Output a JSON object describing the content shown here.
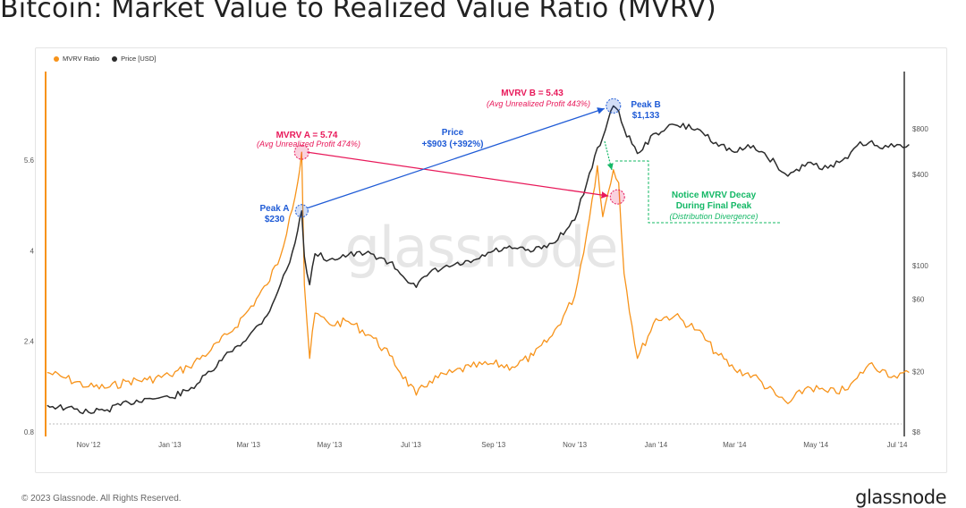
{
  "page": {
    "title": "Bitcoin: Market Value to Realized Value Ratio (MVRV)",
    "copyright": "© 2023 Glassnode. All Rights Reserved.",
    "brand": "glassnode",
    "watermark": "glassnode"
  },
  "colors": {
    "mvrv": "#f7931a",
    "price": "#2b2b2b",
    "pink": "#e8195a",
    "blue": "#1f5bd6",
    "green": "#14b866"
  },
  "chart_data": {
    "type": "line",
    "title": "Bitcoin: Market Value to Realized Value Ratio (MVRV)",
    "legend": [
      "MVRV Ratio",
      "Price [USD]"
    ],
    "legend_position": "top-left",
    "x_ticks": [
      "Nov '12",
      "Jan '13",
      "Mar '13",
      "May '13",
      "Jul '13",
      "Sep '13",
      "Nov '13",
      "Jan '14",
      "Mar '14",
      "May '14",
      "Jul '14"
    ],
    "y_left": {
      "label": "MVRV Ratio",
      "ticks": [
        "0.8",
        "2.4",
        "4",
        "5.6"
      ],
      "range": [
        0.8,
        6.4
      ]
    },
    "y_right": {
      "label": "Price [USD]",
      "scale": "log",
      "ticks": [
        "$8",
        "$20",
        "$60",
        "$100",
        "$400",
        "$800"
      ],
      "range": [
        8,
        1500
      ]
    },
    "x_range": [
      "2012-10-01",
      "2014-07-10"
    ],
    "series": [
      {
        "name": "MVRV Ratio",
        "points": [
          [
            "2012-10-01",
            1.85
          ],
          [
            "2012-10-15",
            1.75
          ],
          [
            "2012-11-01",
            1.6
          ],
          [
            "2012-11-15",
            1.58
          ],
          [
            "2012-12-01",
            1.7
          ],
          [
            "2012-12-15",
            1.72
          ],
          [
            "2013-01-01",
            1.8
          ],
          [
            "2013-01-15",
            1.95
          ],
          [
            "2013-02-01",
            2.25
          ],
          [
            "2013-02-15",
            2.55
          ],
          [
            "2013-03-01",
            2.95
          ],
          [
            "2013-03-15",
            3.4
          ],
          [
            "2013-03-25",
            3.9
          ],
          [
            "2013-04-01",
            4.6
          ],
          [
            "2013-04-07",
            5.2
          ],
          [
            "2013-04-10",
            5.74
          ],
          [
            "2013-04-12",
            3.4
          ],
          [
            "2013-04-16",
            2.1
          ],
          [
            "2013-04-20",
            2.9
          ],
          [
            "2013-05-01",
            2.7
          ],
          [
            "2013-05-15",
            2.75
          ],
          [
            "2013-06-01",
            2.5
          ],
          [
            "2013-06-15",
            2.15
          ],
          [
            "2013-07-05",
            1.45
          ],
          [
            "2013-07-15",
            1.7
          ],
          [
            "2013-08-01",
            1.85
          ],
          [
            "2013-08-15",
            1.95
          ],
          [
            "2013-09-01",
            2.0
          ],
          [
            "2013-09-15",
            1.95
          ],
          [
            "2013-10-01",
            2.15
          ],
          [
            "2013-10-15",
            2.5
          ],
          [
            "2013-11-01",
            3.2
          ],
          [
            "2013-11-10",
            4.3
          ],
          [
            "2013-11-18",
            5.5
          ],
          [
            "2013-11-22",
            4.6
          ],
          [
            "2013-11-30",
            5.43
          ],
          [
            "2013-12-04",
            5.2
          ],
          [
            "2013-12-08",
            3.6
          ],
          [
            "2013-12-18",
            2.1
          ],
          [
            "2014-01-01",
            2.8
          ],
          [
            "2014-01-15",
            2.85
          ],
          [
            "2014-02-01",
            2.6
          ],
          [
            "2014-02-15",
            2.2
          ],
          [
            "2014-03-01",
            1.9
          ],
          [
            "2014-03-15",
            1.8
          ],
          [
            "2014-04-01",
            1.45
          ],
          [
            "2014-04-10",
            1.3
          ],
          [
            "2014-04-25",
            1.6
          ],
          [
            "2014-05-10",
            1.5
          ],
          [
            "2014-05-25",
            1.55
          ],
          [
            "2014-06-01",
            1.75
          ],
          [
            "2014-06-10",
            2.0
          ],
          [
            "2014-06-20",
            1.9
          ],
          [
            "2014-07-01",
            1.75
          ],
          [
            "2014-07-10",
            1.85
          ]
        ],
        "annotations_peak": {
          "A": 5.74,
          "B": 5.43
        }
      },
      {
        "name": "Price [USD]",
        "points": [
          [
            "2012-10-01",
            12
          ],
          [
            "2012-10-15",
            11.5
          ],
          [
            "2012-11-01",
            10.8
          ],
          [
            "2012-11-15",
            11.2
          ],
          [
            "2012-12-01",
            12.5
          ],
          [
            "2012-12-15",
            13.3
          ],
          [
            "2013-01-01",
            13.5
          ],
          [
            "2013-01-15",
            15
          ],
          [
            "2013-02-01",
            20
          ],
          [
            "2013-02-15",
            27
          ],
          [
            "2013-03-01",
            34
          ],
          [
            "2013-03-15",
            47
          ],
          [
            "2013-03-25",
            75
          ],
          [
            "2013-04-01",
            105
          ],
          [
            "2013-04-07",
            170
          ],
          [
            "2013-04-10",
            230
          ],
          [
            "2013-04-12",
            115
          ],
          [
            "2013-04-16",
            75
          ],
          [
            "2013-04-20",
            120
          ],
          [
            "2013-05-01",
            110
          ],
          [
            "2013-05-15",
            118
          ],
          [
            "2013-06-01",
            120
          ],
          [
            "2013-06-15",
            105
          ],
          [
            "2013-07-05",
            72
          ],
          [
            "2013-07-15",
            90
          ],
          [
            "2013-08-01",
            100
          ],
          [
            "2013-08-15",
            105
          ],
          [
            "2013-09-01",
            125
          ],
          [
            "2013-09-15",
            130
          ],
          [
            "2013-10-01",
            125
          ],
          [
            "2013-10-15",
            140
          ],
          [
            "2013-11-01",
            200
          ],
          [
            "2013-11-10",
            350
          ],
          [
            "2013-11-18",
            600
          ],
          [
            "2013-11-22",
            700
          ],
          [
            "2013-11-30",
            1133
          ],
          [
            "2013-12-04",
            1050
          ],
          [
            "2013-12-08",
            800
          ],
          [
            "2013-12-18",
            550
          ],
          [
            "2014-01-01",
            750
          ],
          [
            "2014-01-15",
            850
          ],
          [
            "2014-02-01",
            800
          ],
          [
            "2014-02-15",
            650
          ],
          [
            "2014-03-01",
            560
          ],
          [
            "2014-03-15",
            620
          ],
          [
            "2014-04-01",
            470
          ],
          [
            "2014-04-10",
            390
          ],
          [
            "2014-04-25",
            480
          ],
          [
            "2014-05-10",
            440
          ],
          [
            "2014-05-25",
            510
          ],
          [
            "2014-06-01",
            620
          ],
          [
            "2014-06-10",
            650
          ],
          [
            "2014-06-20",
            590
          ],
          [
            "2014-07-01",
            630
          ],
          [
            "2014-07-10",
            630
          ]
        ],
        "annotations_peak": {
          "A": 230,
          "B": 1133
        }
      }
    ],
    "annotations": [
      {
        "id": "mvrv-a",
        "title": "MVRV A = 5.74",
        "subtitle": "(Avg Unrealized Profit 474%)",
        "color": "pink"
      },
      {
        "id": "mvrv-b",
        "title": "MVRV B = 5.43",
        "subtitle": "(Avg Unrealized Profit 443%)",
        "color": "pink"
      },
      {
        "id": "peak-a",
        "title": "Peak A",
        "subtitle": "$230",
        "color": "blue"
      },
      {
        "id": "peak-b",
        "title": "Peak B",
        "subtitle": "$1,133",
        "color": "blue"
      },
      {
        "id": "price-change",
        "title": "Price",
        "subtitle": "+$903 (+392%)",
        "color": "blue"
      },
      {
        "id": "decay",
        "title": "Notice MVRV Decay",
        "subtitle": "During Final Peak",
        "note": "(Distribution Divergence)",
        "color": "green"
      }
    ]
  }
}
